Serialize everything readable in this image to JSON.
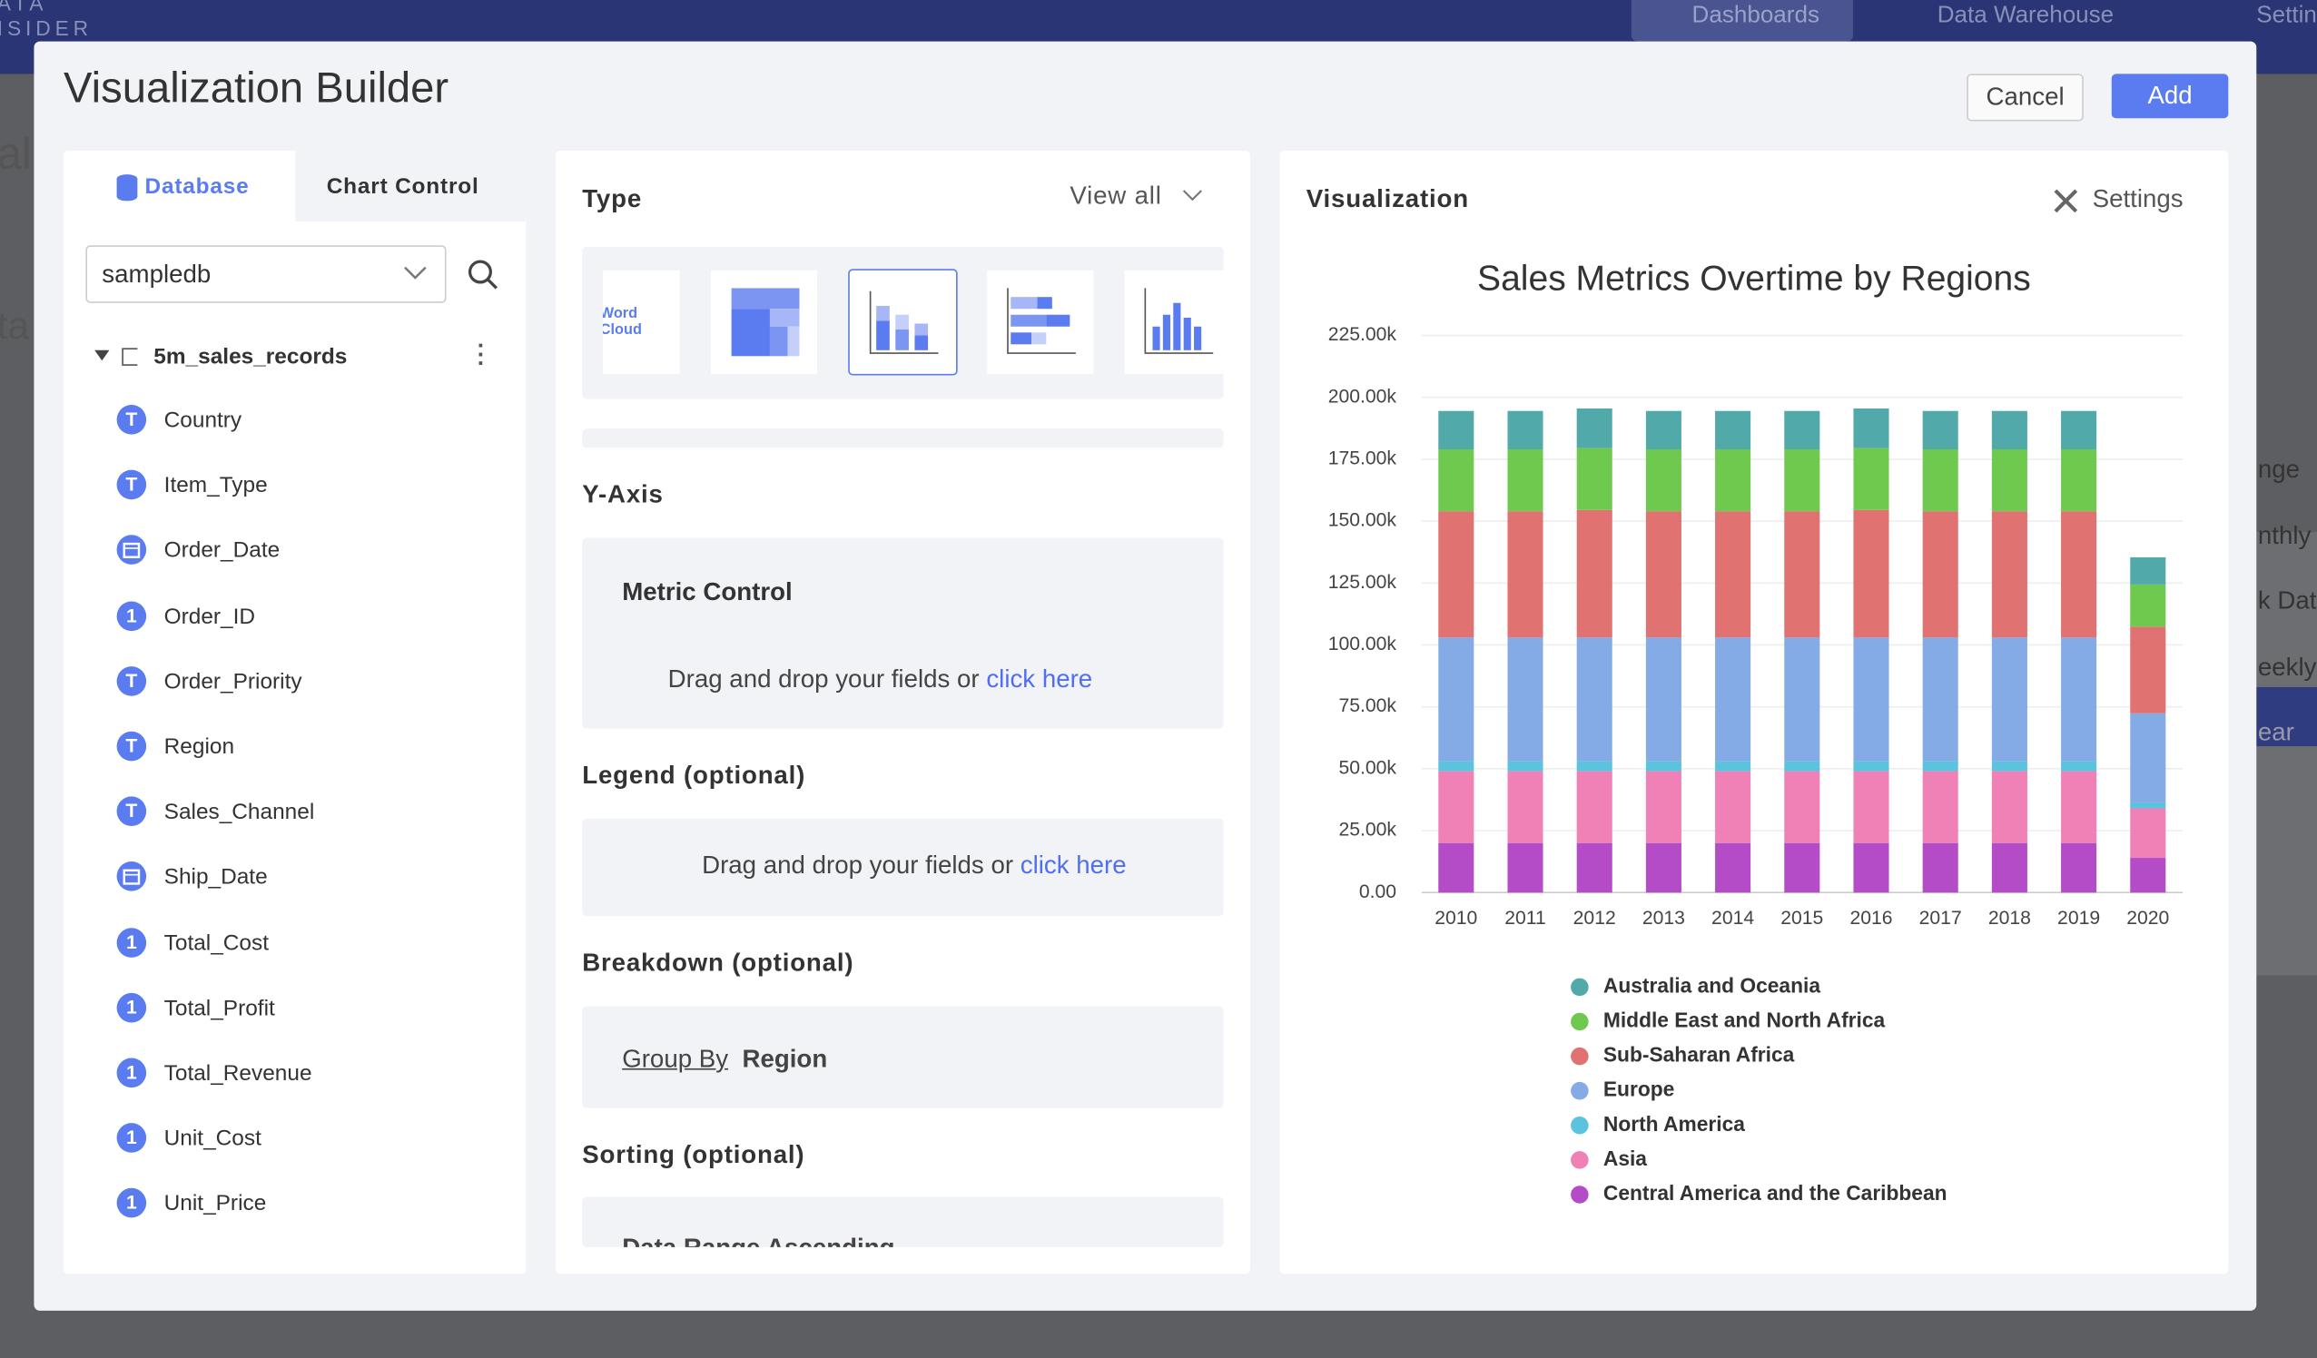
{
  "nav": {
    "brand": [
      "ATA",
      "ISIDER"
    ],
    "items": [
      "Dashboards",
      "Data Warehouse",
      "Settin"
    ]
  },
  "background": {
    "left": [
      "al",
      "ta"
    ],
    "right": [
      "nge",
      "nthly",
      "k Date",
      "eekly",
      "ear"
    ]
  },
  "modal": {
    "title": "Visualization Builder",
    "cancel": "Cancel",
    "add": "Add"
  },
  "left_panel": {
    "tabs": [
      "Database",
      "Chart Control"
    ],
    "database": "sampledb",
    "table": "5m_sales_records",
    "fields": [
      {
        "icon": "T",
        "name": "Country"
      },
      {
        "icon": "T",
        "name": "Item_Type"
      },
      {
        "icon": null,
        "name": "Order_Date"
      },
      {
        "icon": "1",
        "name": "Order_ID"
      },
      {
        "icon": "T",
        "name": "Order_Priority"
      },
      {
        "icon": "T",
        "name": "Region"
      },
      {
        "icon": "T",
        "name": "Sales_Channel"
      },
      {
        "icon": null,
        "name": "Ship_Date"
      },
      {
        "icon": "1",
        "name": "Total_Cost"
      },
      {
        "icon": "1",
        "name": "Total_Profit"
      },
      {
        "icon": "1",
        "name": "Total_Revenue"
      },
      {
        "icon": "1",
        "name": "Unit_Cost"
      },
      {
        "icon": "1",
        "name": "Unit_Price"
      }
    ]
  },
  "config_panel": {
    "type_title": "Type",
    "view_all": "View all",
    "thumb_text": "Word Cloud",
    "y_axis": "Y-Axis",
    "metric_control": "Metric Control",
    "drop_text": "Drag and drop your fields or",
    "click_here": "click here",
    "legend": "Legend (optional)",
    "breakdown": "Breakdown (optional)",
    "group_by": "Group By",
    "group_value": "Region",
    "sorting": "Sorting (optional)",
    "sort_value": "Data Range  Ascending"
  },
  "viz_panel": {
    "title": "Visualization",
    "settings": "Settings"
  },
  "chart_data": {
    "type": "stacked_bar",
    "title": "Sales Metrics Overtime by Regions",
    "categories": [
      "2010",
      "2011",
      "2012",
      "2013",
      "2014",
      "2015",
      "2016",
      "2017",
      "2018",
      "2019",
      "2020"
    ],
    "series": [
      {
        "name": "Australia and Oceania",
        "color": "#52a9a9",
        "values": [
          15500,
          15500,
          16000,
          15500,
          15500,
          15500,
          16000,
          15500,
          15500,
          15500,
          11000
        ]
      },
      {
        "name": "Middle East and North Africa",
        "color": "#70c94f",
        "values": [
          25000,
          25000,
          25000,
          25000,
          25000,
          25000,
          25000,
          25000,
          25000,
          25000,
          17000
        ]
      },
      {
        "name": "Sub-Saharan Africa",
        "color": "#e07272",
        "values": [
          51000,
          51000,
          51500,
          51000,
          51000,
          51000,
          51500,
          51000,
          51000,
          51000,
          35000
        ]
      },
      {
        "name": "Europe",
        "color": "#84abe6",
        "values": [
          50000,
          50000,
          50000,
          50000,
          50000,
          50000,
          50000,
          50000,
          50000,
          50000,
          36000
        ]
      },
      {
        "name": "North America",
        "color": "#5cc3df",
        "values": [
          4000,
          4000,
          4000,
          4000,
          4000,
          4000,
          4000,
          4000,
          4000,
          4000,
          2400
        ]
      },
      {
        "name": "Asia",
        "color": "#f081b6",
        "values": [
          29000,
          29000,
          29000,
          29000,
          29000,
          29000,
          29000,
          29000,
          29000,
          29000,
          20000
        ]
      },
      {
        "name": "Central America and the Caribbean",
        "color": "#b34cc6",
        "values": [
          20000,
          20000,
          20000,
          20000,
          20000,
          20000,
          20000,
          20000,
          20000,
          20000,
          14000
        ]
      }
    ],
    "ylim": [
      0,
      225000
    ],
    "yticks": [
      {
        "value": 0,
        "label": "0.00"
      },
      {
        "value": 25000,
        "label": "25.00k"
      },
      {
        "value": 50000,
        "label": "50.00k"
      },
      {
        "value": 75000,
        "label": "75.00k"
      },
      {
        "value": 100000,
        "label": "100.00k"
      },
      {
        "value": 125000,
        "label": "125.00k"
      },
      {
        "value": 150000,
        "label": "150.00k"
      },
      {
        "value": 175000,
        "label": "175.00k"
      },
      {
        "value": 200000,
        "label": "200.00k"
      },
      {
        "value": 225000,
        "label": "225.00k"
      }
    ],
    "grid": true
  }
}
